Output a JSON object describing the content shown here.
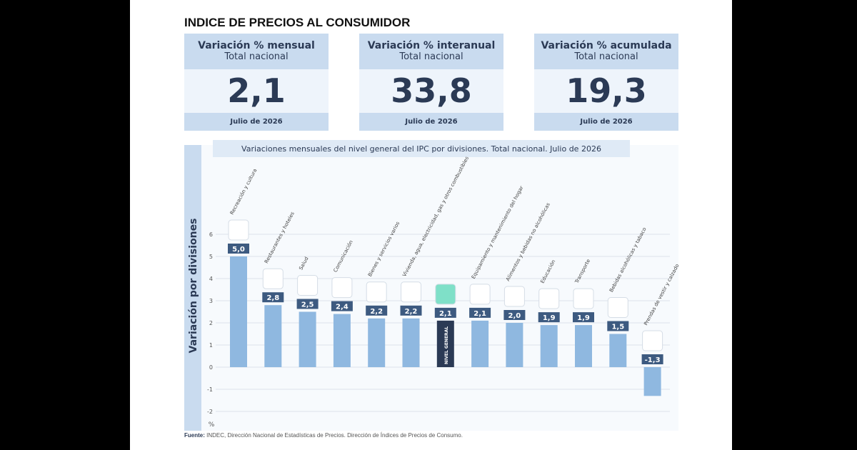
{
  "header": {
    "title": "INDICE DE PRECIOS AL CONSUMIDOR"
  },
  "cards": [
    {
      "title": "Variación % mensual",
      "subtitle": "Total nacional",
      "value": "2,1",
      "footer": "Julio de 2026"
    },
    {
      "title": "Variación % interanual",
      "subtitle": "Total nacional",
      "value": "33,8",
      "footer": "Julio de 2026"
    },
    {
      "title": "Variación % acumulada",
      "subtitle": "Total nacional",
      "value": "19,3",
      "footer": "Julio de 2026"
    }
  ],
  "chart_data": {
    "type": "bar",
    "title": "Variaciones mensuales del nivel general del IPC por divisiones. Total nacional. Julio de 2026",
    "y_label": "Variación por divisiones",
    "y_unit": "%",
    "categories": [
      "Recreación y cultura",
      "Restaurantes y hoteles",
      "Salud",
      "Comunicación",
      "Bienes y servicios varios",
      "Vivienda, agua, electricidad, gas y otros combustibles",
      "NIVEL GENERAL",
      "Equipamiento y mantenimiento del hogar",
      "Alimentos y bebidas no alcohólicas",
      "Educación",
      "Transporte",
      "Bebidas alcohólicas y tabaco",
      "Prendas de vestir y calzado"
    ],
    "values": [
      5.0,
      2.8,
      2.5,
      2.4,
      2.2,
      2.2,
      2.1,
      2.1,
      2.0,
      1.9,
      1.9,
      1.5,
      -1.3
    ],
    "value_labels": [
      "5,0",
      "2,8",
      "2,5",
      "2,4",
      "2,2",
      "2,2",
      "2,1",
      "2,1",
      "2,0",
      "1,9",
      "1,9",
      "1,5",
      "-1,3"
    ],
    "colors": [
      "#8fb8e0",
      "#8fb8e0",
      "#8fb8e0",
      "#8fb8e0",
      "#8fb8e0",
      "#8fb8e0",
      "#2b3a55",
      "#8fb8e0",
      "#8fb8e0",
      "#8fb8e0",
      "#8fb8e0",
      "#8fb8e0",
      "#8fb8e0"
    ],
    "ylim": [
      -2,
      6
    ],
    "yticks": [
      -2,
      -1,
      0,
      1,
      2,
      3,
      4,
      5,
      6
    ],
    "grid": true
  },
  "source": {
    "label": "Fuente:",
    "text": "INDEC, Dirección Nacional de Estadísticas de Precios. Dirección de Índices de Precios de Consumo."
  }
}
